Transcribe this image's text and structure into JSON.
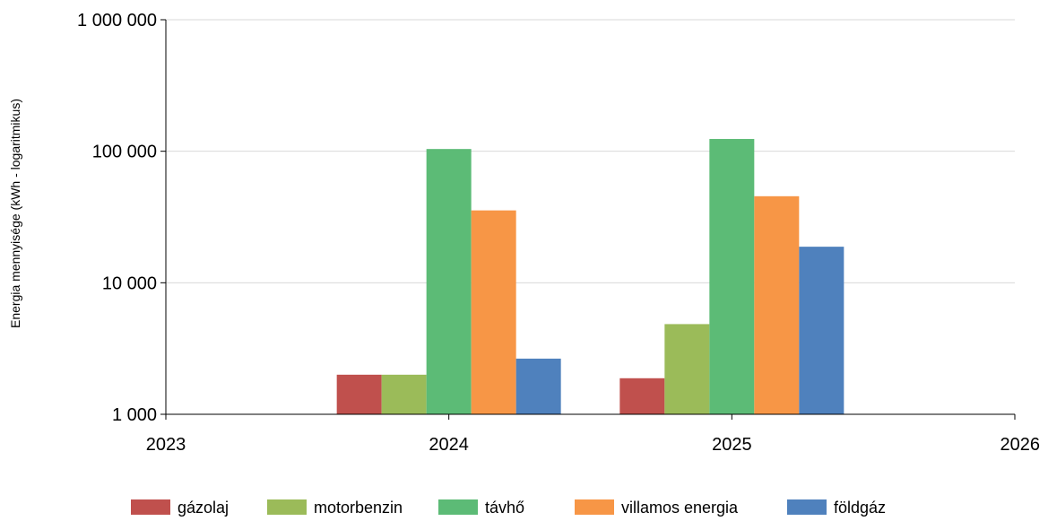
{
  "chart_data": {
    "type": "bar",
    "yscale": "log",
    "ylabel": "Energia mennyisége (kWh - logaritmikus)",
    "xlabel": "",
    "title": "",
    "ylim": [
      1000,
      1000000
    ],
    "y_ticks": [
      {
        "value": 1000,
        "label": "1 000"
      },
      {
        "value": 10000,
        "label": "10 000"
      },
      {
        "value": 100000,
        "label": "100 000"
      },
      {
        "value": 1000000,
        "label": "1 000 000"
      }
    ],
    "xlim": [
      2023,
      2026
    ],
    "x_ticks": [
      {
        "value": 2023,
        "label": "2023"
      },
      {
        "value": 2024,
        "label": "2024"
      },
      {
        "value": 2025,
        "label": "2025"
      },
      {
        "value": 2026,
        "label": "2026"
      }
    ],
    "categories": [
      2024,
      2025
    ],
    "grid": true,
    "legend_position": "bottom",
    "series": [
      {
        "name": "gázolaj",
        "color": "#c0504d",
        "values": [
          2000,
          1880
        ]
      },
      {
        "name": "motorbenzin",
        "color": "#9bbb59",
        "values": [
          2000,
          4850
        ]
      },
      {
        "name": "távhő",
        "color": "#5cbb76",
        "values": [
          104000,
          124000
        ]
      },
      {
        "name": "villamos energia",
        "color": "#f79646",
        "values": [
          35500,
          45500
        ]
      },
      {
        "name": "földgáz",
        "color": "#4f81bd",
        "values": [
          2650,
          18800
        ]
      }
    ]
  }
}
